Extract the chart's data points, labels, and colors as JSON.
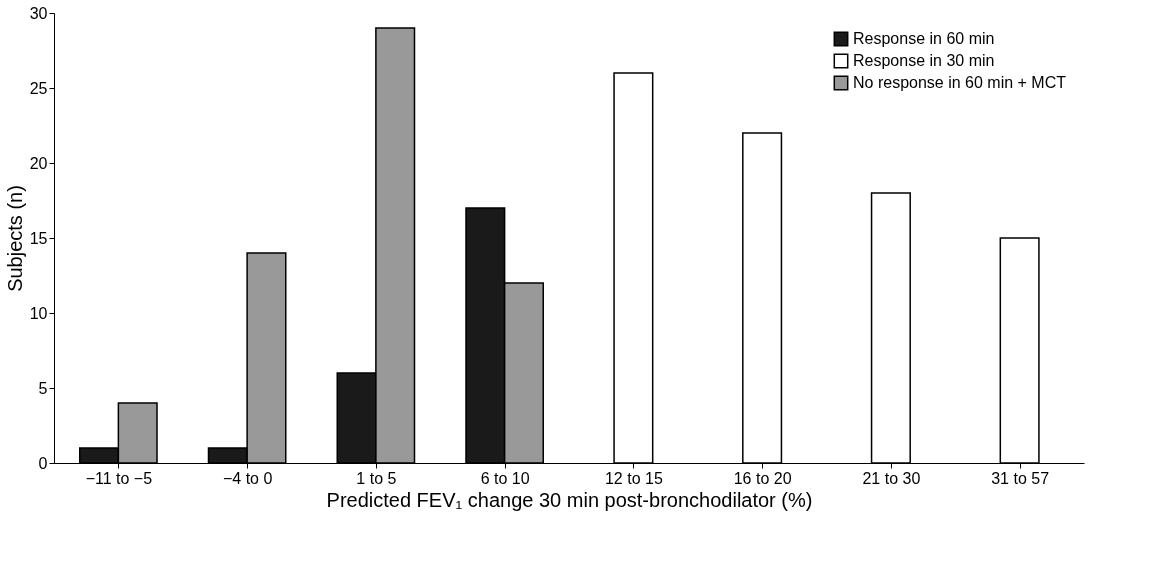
{
  "chart_data": {
    "type": "bar",
    "xlabel": "Predicted FEV₁ change 30 min post-bronchodilator (%)",
    "ylabel": "Subjects (n)",
    "categories": [
      "−11 to −5",
      "−4 to 0",
      "1 to 5",
      "6 to 10",
      "12 to 15",
      "16 to 20",
      "21 to 30",
      "31 to 57"
    ],
    "series": [
      {
        "name": "Response in 60 min",
        "color": "#1a1a1a",
        "values": [
          1,
          1,
          6,
          17,
          null,
          null,
          null,
          null
        ]
      },
      {
        "name": "Response in 30 min",
        "color": "#ffffff",
        "values": [
          null,
          null,
          null,
          null,
          26,
          22,
          18,
          15
        ]
      },
      {
        "name": "No response in 60 min + MCT",
        "color": "#999999",
        "values": [
          4,
          14,
          29,
          12,
          null,
          null,
          null,
          null
        ]
      }
    ],
    "ylim": [
      0,
      30
    ],
    "yticks": [
      0,
      5,
      10,
      15,
      20,
      25,
      30
    ],
    "grid": false,
    "legend": "top right"
  }
}
